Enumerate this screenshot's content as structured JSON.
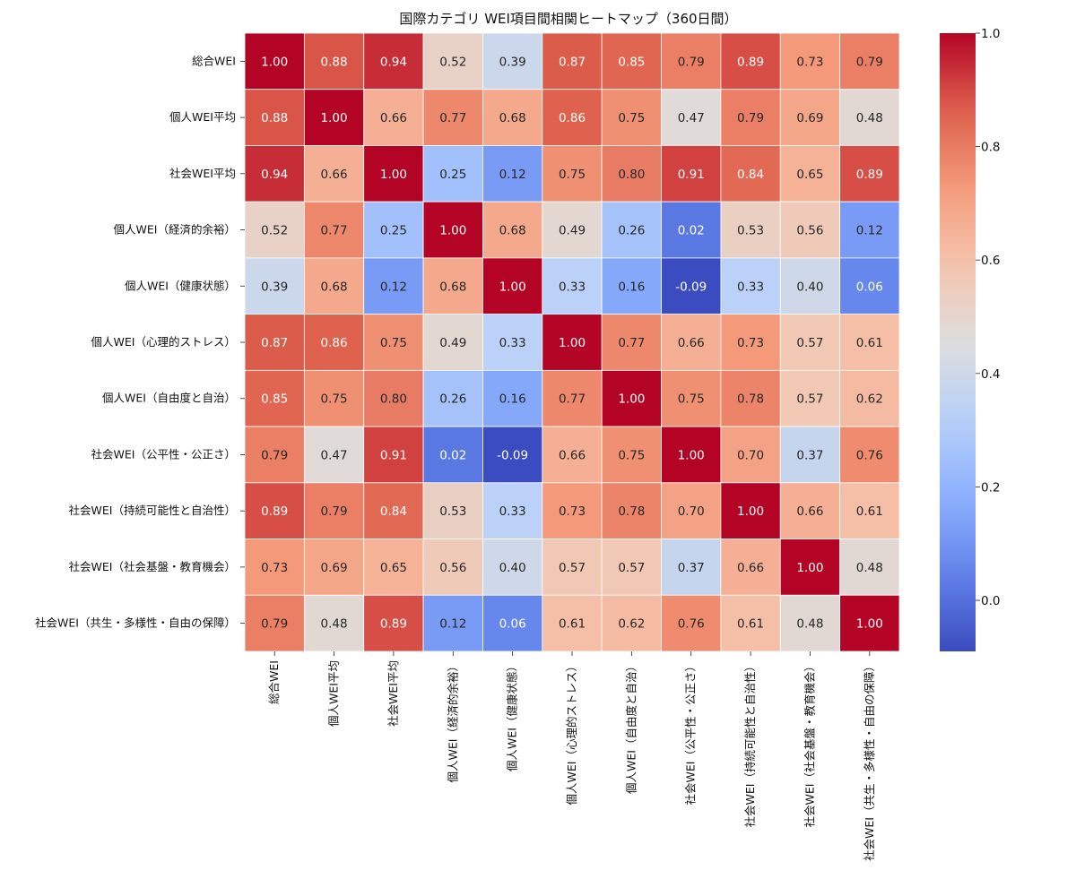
{
  "chart_data": {
    "type": "heatmap",
    "title": "国際カテゴリ WEI項目間相関ヒートマップ（360日間）",
    "labels": [
      "総合WEI",
      "個人WEI平均",
      "社会WEI平均",
      "個人WEI（経済的余裕）",
      "個人WEI（健康状態）",
      "個人WEI（心理的ストレス）",
      "個人WEI（自由度と自治）",
      "社会WEI（公平性・公正さ）",
      "社会WEI（持続可能性と自治性）",
      "社会WEI（社会基盤・教育機会）",
      "社会WEI（共生・多様性・自由の保障）"
    ],
    "matrix": [
      [
        1.0,
        0.88,
        0.94,
        0.52,
        0.39,
        0.87,
        0.85,
        0.79,
        0.89,
        0.73,
        0.79
      ],
      [
        0.88,
        1.0,
        0.66,
        0.77,
        0.68,
        0.86,
        0.75,
        0.47,
        0.79,
        0.69,
        0.48
      ],
      [
        0.94,
        0.66,
        1.0,
        0.25,
        0.12,
        0.75,
        0.8,
        0.91,
        0.84,
        0.65,
        0.89
      ],
      [
        0.52,
        0.77,
        0.25,
        1.0,
        0.68,
        0.49,
        0.26,
        0.02,
        0.53,
        0.56,
        0.12
      ],
      [
        0.39,
        0.68,
        0.12,
        0.68,
        1.0,
        0.33,
        0.16,
        -0.09,
        0.33,
        0.4,
        0.06
      ],
      [
        0.87,
        0.86,
        0.75,
        0.49,
        0.33,
        1.0,
        0.77,
        0.66,
        0.73,
        0.57,
        0.61
      ],
      [
        0.85,
        0.75,
        0.8,
        0.26,
        0.16,
        0.77,
        1.0,
        0.75,
        0.78,
        0.57,
        0.62
      ],
      [
        0.79,
        0.47,
        0.91,
        0.02,
        -0.09,
        0.66,
        0.75,
        1.0,
        0.7,
        0.37,
        0.76
      ],
      [
        0.89,
        0.79,
        0.84,
        0.53,
        0.33,
        0.73,
        0.78,
        0.7,
        1.0,
        0.66,
        0.61
      ],
      [
        0.73,
        0.69,
        0.65,
        0.56,
        0.4,
        0.57,
        0.57,
        0.37,
        0.66,
        1.0,
        0.48
      ],
      [
        0.79,
        0.48,
        0.89,
        0.12,
        0.06,
        0.61,
        0.62,
        0.76,
        0.61,
        0.48,
        1.0
      ]
    ],
    "colormap": "coolwarm",
    "vmin": -0.09,
    "vmax": 1.0,
    "colorbar_ticks": [
      0.0,
      0.2,
      0.4,
      0.6,
      0.8,
      1.0
    ],
    "colorbar_tick_labels": [
      "0.0",
      "0.2",
      "0.4",
      "0.6",
      "0.8",
      "1.0"
    ],
    "annotations": true,
    "value_format": "2 decimals"
  }
}
